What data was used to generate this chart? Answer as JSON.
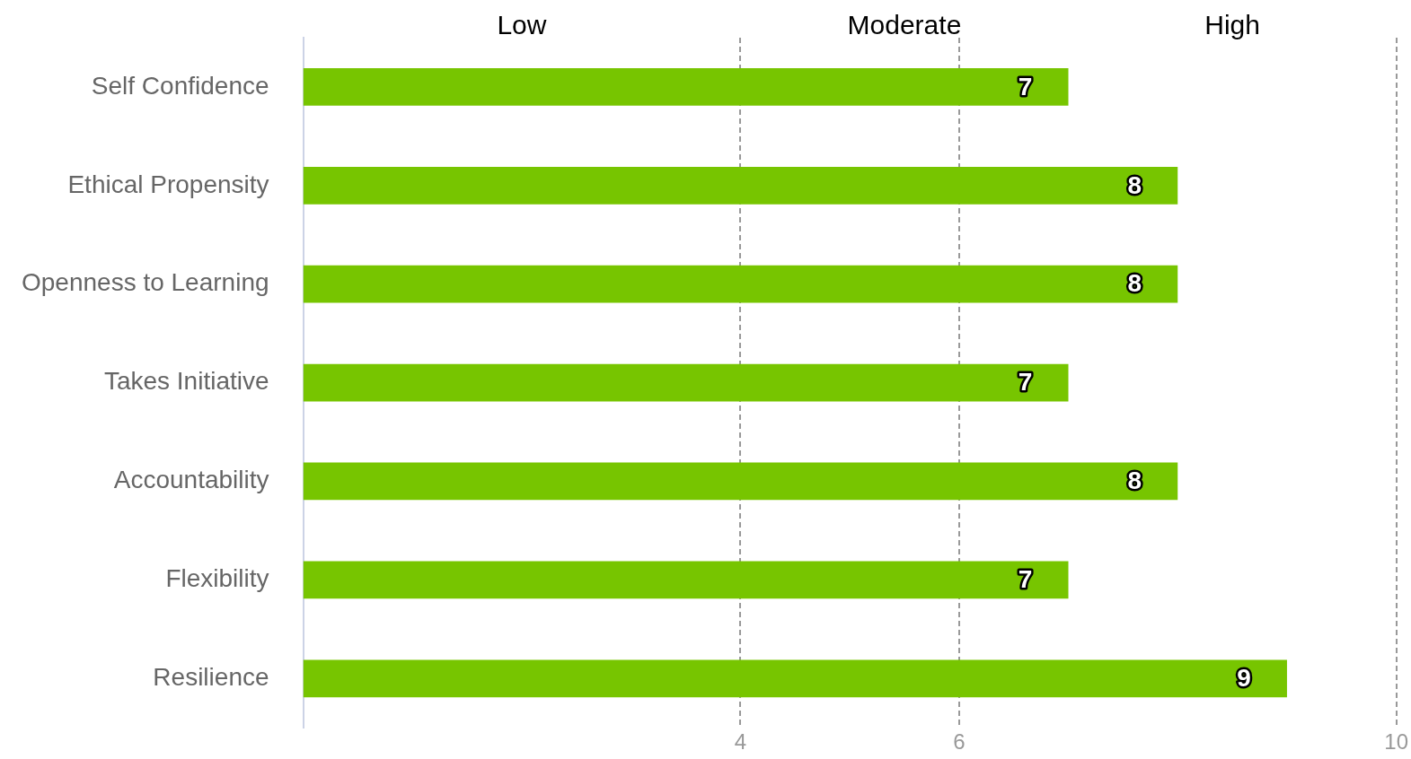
{
  "chart_data": {
    "type": "bar",
    "orientation": "horizontal",
    "categories": [
      "Self Confidence",
      "Ethical Propensity",
      "Openness to Learning",
      "Takes Initiative",
      "Accountability",
      "Flexibility",
      "Resilience"
    ],
    "values": [
      7,
      8,
      8,
      7,
      8,
      7,
      9
    ],
    "color": "#77c500",
    "xlim": [
      0,
      10
    ],
    "xticks": [
      4,
      6,
      10
    ],
    "grid": "x",
    "data_labels": true,
    "legend": false,
    "annotations": [
      "Low",
      "Moderate",
      "High"
    ]
  }
}
